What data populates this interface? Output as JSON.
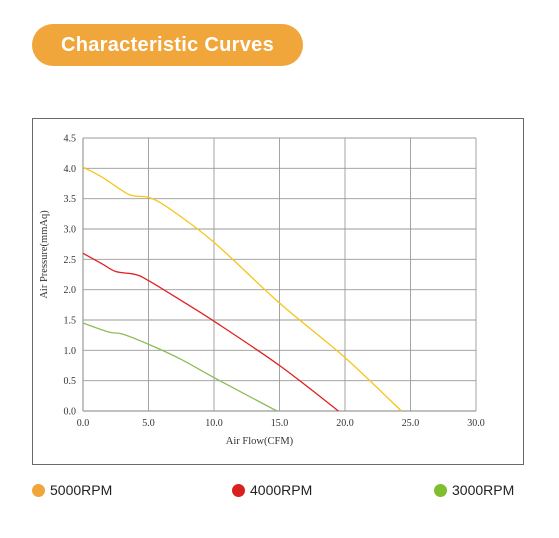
{
  "header": {
    "title": "Characteristic Curves"
  },
  "colors": {
    "title_bg": "#f0a63a",
    "grid": "#9a9a9a",
    "axis": "#333333"
  },
  "chart_data": {
    "type": "line",
    "xlabel": "Air Flow(CFM)",
    "ylabel": "Air Pressure(mmAq)",
    "xlim": [
      0,
      30
    ],
    "ylim": [
      0,
      4.5
    ],
    "xticks": [
      "0.0",
      "5.0",
      "10.0",
      "15.0",
      "20.0",
      "25.0",
      "30.0"
    ],
    "yticks": [
      "0.0",
      "0.5",
      "1.0",
      "1.5",
      "2.0",
      "2.5",
      "3.0",
      "3.5",
      "4.0",
      "4.5"
    ],
    "grid": true,
    "series": [
      {
        "name": "5000RPM",
        "color": "#f5c518",
        "points": [
          [
            0,
            4.02
          ],
          [
            1.5,
            3.85
          ],
          [
            3.5,
            3.57
          ],
          [
            5.0,
            3.52
          ],
          [
            6.5,
            3.35
          ],
          [
            10,
            2.78
          ],
          [
            15,
            1.78
          ],
          [
            20,
            0.88
          ],
          [
            24.3,
            0.0
          ]
        ]
      },
      {
        "name": "4000RPM",
        "color": "#e0201f",
        "points": [
          [
            0,
            2.6
          ],
          [
            1.5,
            2.42
          ],
          [
            2.5,
            2.3
          ],
          [
            4.0,
            2.25
          ],
          [
            5.0,
            2.15
          ],
          [
            7.5,
            1.82
          ],
          [
            10,
            1.48
          ],
          [
            15,
            0.75
          ],
          [
            19.5,
            0.0
          ]
        ]
      },
      {
        "name": "3000RPM",
        "color": "#8fbc5a",
        "points": [
          [
            0,
            1.45
          ],
          [
            2.0,
            1.3
          ],
          [
            3.0,
            1.27
          ],
          [
            5.0,
            1.1
          ],
          [
            7.5,
            0.85
          ],
          [
            10,
            0.55
          ],
          [
            14.8,
            0.0
          ]
        ]
      }
    ]
  },
  "legend": [
    {
      "label": "5000RPM",
      "color": "#f0a63a"
    },
    {
      "label": "4000RPM",
      "color": "#d8201f"
    },
    {
      "label": "3000RPM",
      "color": "#7fbf2e"
    }
  ]
}
